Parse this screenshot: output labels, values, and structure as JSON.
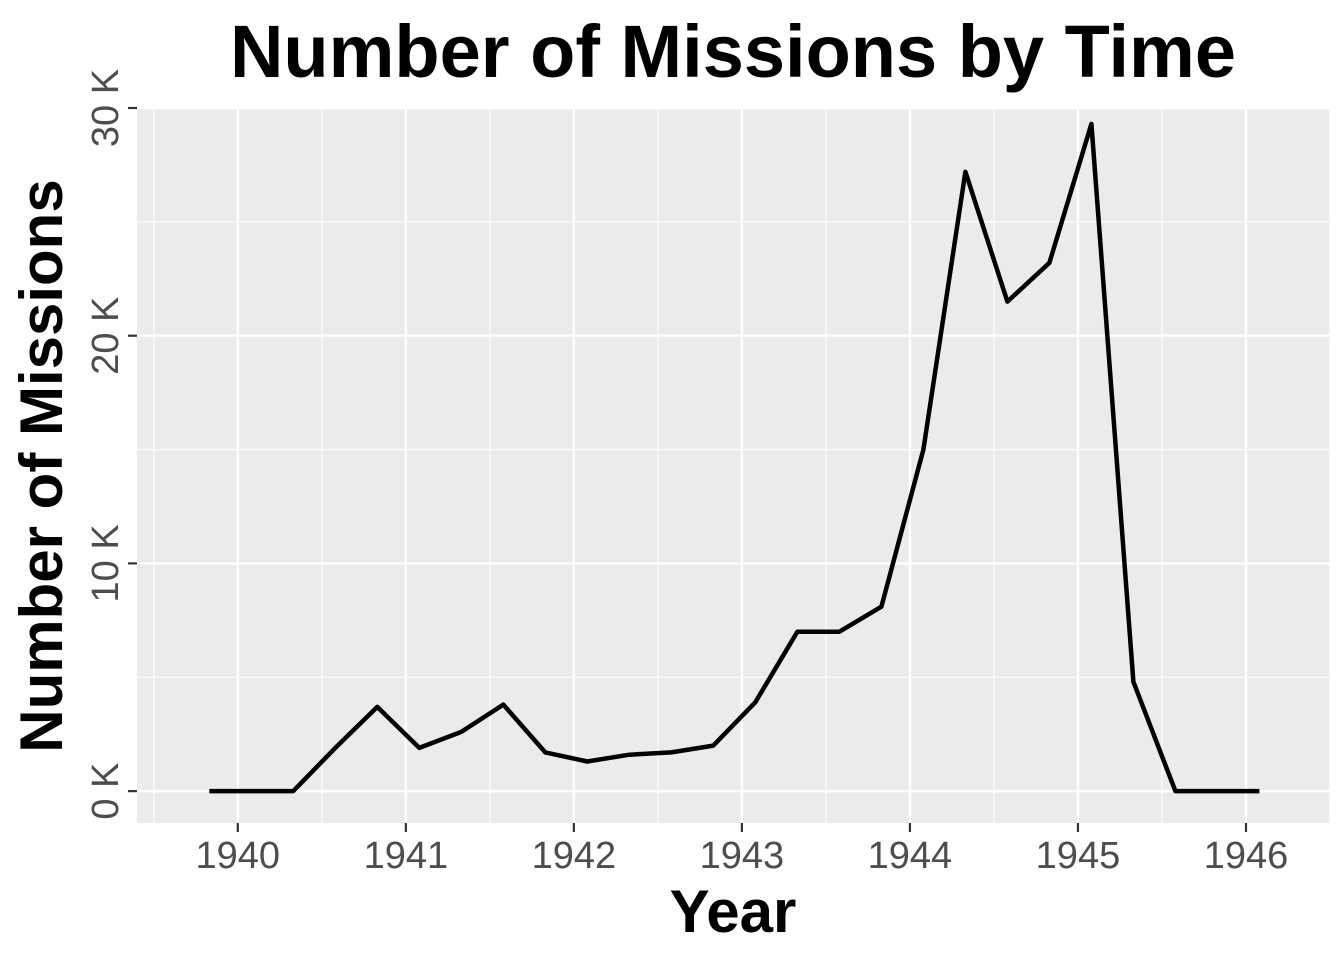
{
  "chart_data": {
    "type": "line",
    "title": "Number of Missions by Time",
    "xlabel": "Year",
    "ylabel": "Number of Missions",
    "xlim": [
      1939.4,
      1946.5
    ],
    "ylim": [
      -1400,
      30000
    ],
    "x_ticks": [
      1940,
      1941,
      1942,
      1943,
      1944,
      1945,
      1946
    ],
    "x_tick_labels": [
      "1940",
      "1941",
      "1942",
      "1943",
      "1944",
      "1945",
      "1946"
    ],
    "y_ticks": [
      0,
      10000,
      20000,
      30000
    ],
    "y_tick_labels": [
      "0 K",
      "10 K",
      "20 K",
      "30 K"
    ],
    "grid": true,
    "legend": "none",
    "colors": {
      "panel": "#ebebeb",
      "grid": "#ffffff",
      "line": "#000000",
      "tick_text": "#4d4d4d",
      "tick_mark": "#333333"
    },
    "series": [
      {
        "x": [
          1939.83,
          1940.08,
          1940.33,
          1940.58,
          1940.83,
          1941.08,
          1941.33,
          1941.58,
          1941.83,
          1942.08,
          1942.33,
          1942.58,
          1942.83,
          1943.08,
          1943.33,
          1943.58,
          1943.83,
          1944.08,
          1944.33,
          1944.58,
          1944.83,
          1945.08,
          1945.33,
          1945.58,
          1945.83,
          1946.08
        ],
        "y": [
          0,
          0,
          0,
          1900,
          3700,
          1900,
          2600,
          3800,
          1700,
          1300,
          1600,
          1700,
          2000,
          3900,
          7000,
          7000,
          8100,
          15000,
          27200,
          21500,
          23200,
          29300,
          4800,
          0,
          0,
          0
        ]
      }
    ]
  }
}
